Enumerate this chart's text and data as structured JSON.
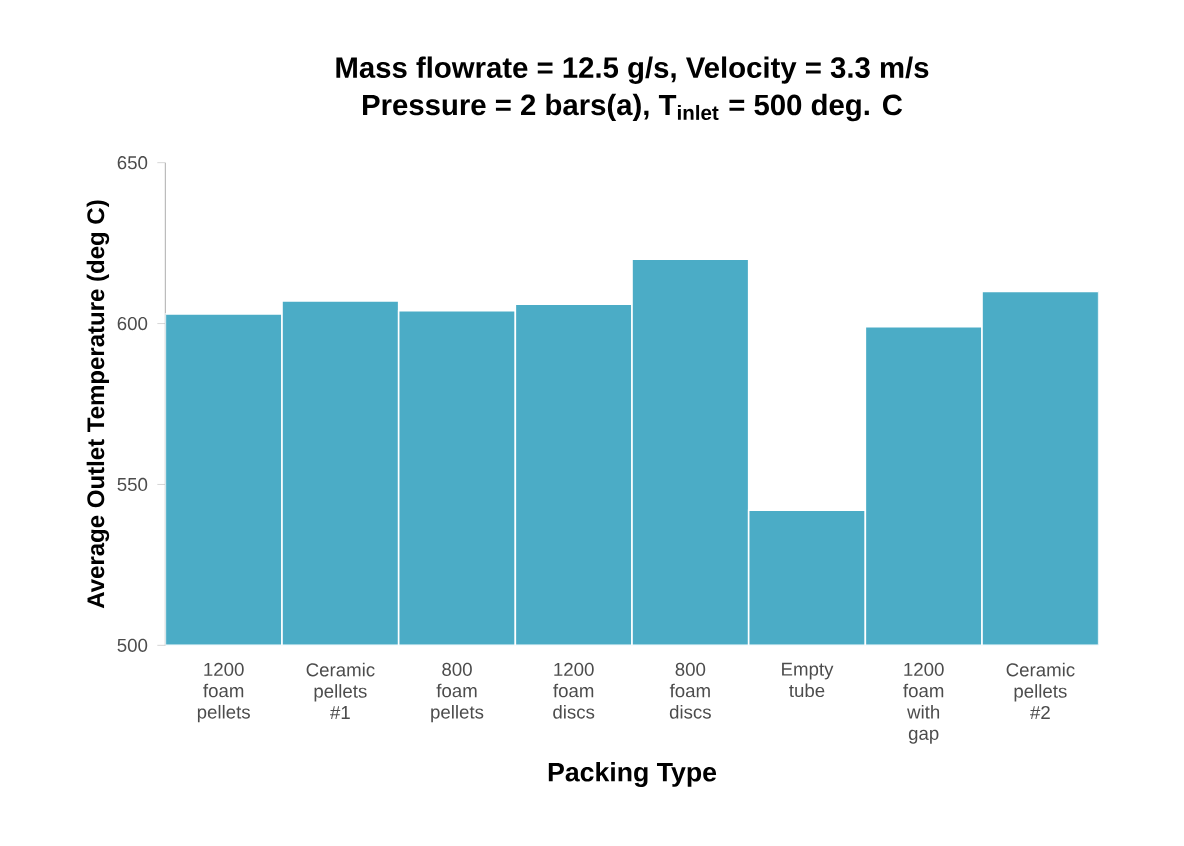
{
  "chart_data": {
    "type": "bar",
    "title": "Mass flowrate = 12.5 g/s, Velocity = 3.3 m/s",
    "subtitle": "Pressure = 2 bars(a), T$_{inlet}$ = 500 deg. C",
    "xlabel": "Packing Type",
    "ylabel": "Average Outlet Temperature  (deg C)",
    "categories": [
      "1200 foam pellets",
      "Ceramic pellets #1",
      "800 foam pellets",
      "1200 foam discs",
      "800 foam discs",
      "Empty tube",
      "1200 foam with gap",
      "Ceramic pellets #2"
    ],
    "values": [
      603,
      607,
      604,
      606,
      620,
      542,
      599,
      610
    ],
    "color": "#4bacc6",
    "ylim": [
      500,
      650
    ],
    "yticks": [
      500,
      550,
      600,
      650
    ]
  }
}
